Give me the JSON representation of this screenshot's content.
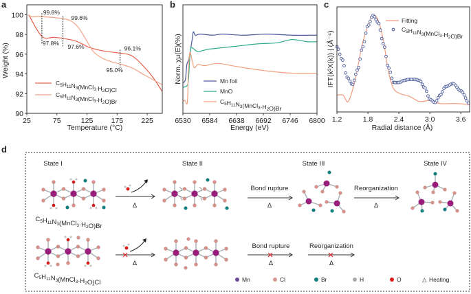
{
  "chart_data": [
    {
      "panel": "a",
      "type": "line",
      "xlabel": "Temperature (°C)",
      "ylabel": "Weight (%)",
      "xlim": [
        25,
        250
      ],
      "ylim": [
        90,
        101
      ],
      "xticks": [
        "25",
        "75",
        "125",
        "175",
        "225"
      ],
      "xtick_values": [
        25,
        75,
        125,
        175,
        225
      ],
      "yticks": [
        "90",
        "92",
        "94",
        "96",
        "98",
        "100"
      ],
      "ytick_values": [
        90,
        92,
        94,
        96,
        98,
        100
      ],
      "legend": "bottom-left",
      "series": [
        {
          "name": "C5H11N3(MnCl3·H2O)Cl",
          "color": "#e4604a",
          "x": [
            28,
            50,
            70,
            85,
            105,
            118,
            130,
            150,
            180,
            195,
            205,
            220,
            235,
            250
          ],
          "y": [
            100,
            97.8,
            97.7,
            97.6,
            97.35,
            97.0,
            96.65,
            96.35,
            96.1,
            95.95,
            95.6,
            94.7,
            93.6,
            92.2
          ]
        },
        {
          "name": "C5H11N3(MnCl3·H2O)Br",
          "color": "#f2a488",
          "x": [
            28,
            33,
            50,
            85,
            100,
            112,
            125,
            135,
            150,
            170,
            180,
            200,
            220,
            250
          ],
          "y": [
            100,
            99.8,
            99.8,
            99.6,
            99.3,
            98.6,
            97.3,
            96.3,
            95.6,
            95.15,
            95.0,
            94.6,
            93.9,
            92.9
          ]
        }
      ],
      "annotations": [
        {
          "text": "99.8%",
          "x": 50,
          "y": 99.8
        },
        {
          "text": "99.6%",
          "x": 85,
          "y": 99.6
        },
        {
          "text": "97.8%",
          "x": 50,
          "y": 97.8
        },
        {
          "text": "97.6%",
          "x": 85,
          "y": 97.6
        },
        {
          "text": "96.1%",
          "x": 180,
          "y": 96.1
        },
        {
          "text": "95.0%",
          "x": 180,
          "y": 95.0
        }
      ]
    },
    {
      "panel": "b",
      "type": "line",
      "xlabel": "Energy (eV)",
      "ylabel": "Norm. χμ(E)(%)",
      "xlim": [
        6530,
        6800
      ],
      "ylim": [
        0,
        1
      ],
      "xticks": [
        "6530",
        "6584",
        "6638",
        "6692",
        "6746",
        "6800"
      ],
      "xtick_values": [
        6530,
        6584,
        6638,
        6692,
        6746,
        6800
      ],
      "legend": "bottom-center",
      "series": [
        {
          "name": "Mn foil",
          "color": "#4a5a9c",
          "x": [
            6530,
            6535,
            6538,
            6542,
            6548,
            6551,
            6555,
            6565,
            6590,
            6610,
            6650,
            6700,
            6750,
            6800
          ],
          "y": [
            0.28,
            0.31,
            0.45,
            0.5,
            0.66,
            0.75,
            0.72,
            0.73,
            0.72,
            0.73,
            0.72,
            0.73,
            0.72,
            0.72
          ]
        },
        {
          "name": "MnO",
          "color": "#2aa98a",
          "x": [
            6530,
            6537,
            6541,
            6545,
            6550,
            6560,
            6580,
            6600,
            6640,
            6680,
            6720,
            6750,
            6780,
            6800
          ],
          "y": [
            0.24,
            0.25,
            0.3,
            0.58,
            0.6,
            0.57,
            0.59,
            0.6,
            0.62,
            0.64,
            0.65,
            0.68,
            0.66,
            0.66
          ]
        },
        {
          "name": "C5H11N3(MnCl3·H2O)Br",
          "color": "#f0a07e",
          "x": [
            6530,
            6534,
            6539,
            6541,
            6544,
            6548,
            6553,
            6560,
            6575,
            6600,
            6640,
            6700,
            6750,
            6800
          ],
          "y": [
            0.11,
            0.12,
            0.1,
            0.38,
            0.56,
            0.5,
            0.42,
            0.45,
            0.44,
            0.46,
            0.43,
            0.39,
            0.37,
            0.37
          ]
        }
      ]
    },
    {
      "panel": "c",
      "type": "line",
      "xlabel": "Radial distance (Å)",
      "ylabel": "IFT(k³X(k)) | (Å⁻⁴)",
      "xlim": [
        1.2,
        3.77
      ],
      "ylim": [
        0,
        1
      ],
      "xticks": [
        "1.2",
        "1.8",
        "2.4",
        "3.0",
        "3.6"
      ],
      "xtick_values": [
        1.2,
        1.8,
        2.4,
        3.0,
        3.6
      ],
      "legend": "top-right",
      "series": [
        {
          "name": "Fitting",
          "color": "#f29a7c",
          "style": "line",
          "x": [
            1.2,
            1.32,
            1.42,
            1.55,
            1.7,
            1.85,
            1.92,
            2.0,
            2.1,
            2.2,
            2.3,
            2.45,
            2.6,
            2.8,
            3.0,
            3.2,
            3.5,
            3.77
          ],
          "y": [
            0.16,
            0.16,
            0.1,
            0.3,
            0.66,
            0.88,
            0.92,
            0.87,
            0.68,
            0.38,
            0.22,
            0.17,
            0.15,
            0.1,
            0.11,
            0.08,
            0.08,
            0.07
          ]
        },
        {
          "name": "C5H11N3(MnCl3·H2O)Br",
          "color": "#4a5a9c",
          "style": "open-circles",
          "x": [
            1.2,
            1.3,
            1.4,
            1.5,
            1.6,
            1.7,
            1.8,
            1.9,
            2.0,
            2.1,
            2.2,
            2.3,
            2.4,
            2.5,
            2.6,
            2.7,
            2.8,
            2.9,
            3.0,
            3.1,
            3.2,
            3.3,
            3.45,
            3.6,
            3.77
          ],
          "y": [
            0.62,
            0.5,
            0.33,
            0.26,
            0.4,
            0.62,
            0.82,
            0.92,
            0.85,
            0.65,
            0.42,
            0.28,
            0.28,
            0.3,
            0.31,
            0.31,
            0.3,
            0.23,
            0.12,
            0.09,
            0.16,
            0.24,
            0.27,
            0.2,
            0.08
          ]
        }
      ]
    }
  ],
  "panels": {
    "a": "a",
    "b": "b",
    "c": "c",
    "d": "d"
  },
  "diagram": {
    "states": [
      "State  I",
      "State  II",
      "State  III",
      "State IV"
    ],
    "bond_rupture": "Bond rupture",
    "reorganization": "Reorganization",
    "heating_symbol": "Δ",
    "formula_br": "C5H11N3(MnCl3·H2O)Br",
    "formula_cl": "C5H11N3(MnCl3·H2O)Cl",
    "legend": [
      {
        "label": "Mn",
        "color": "#6b4a9a"
      },
      {
        "label": "Cl",
        "color": "#d99a92"
      },
      {
        "label": "Br",
        "color": "#0f7f80"
      },
      {
        "label": "H",
        "color": "#a8a8a8"
      },
      {
        "label": "O",
        "color": "#e01b1b"
      },
      {
        "label": "Heating",
        "symbol": "△"
      }
    ],
    "atom_colors": {
      "Mn": "#9a1d7c",
      "Cl": "#d8918a",
      "Br": "#0f7f80",
      "H": "#c8c8c8",
      "O": "#d61a1a",
      "bond": "#a9afb5",
      "blocked": "#e8242a"
    }
  }
}
